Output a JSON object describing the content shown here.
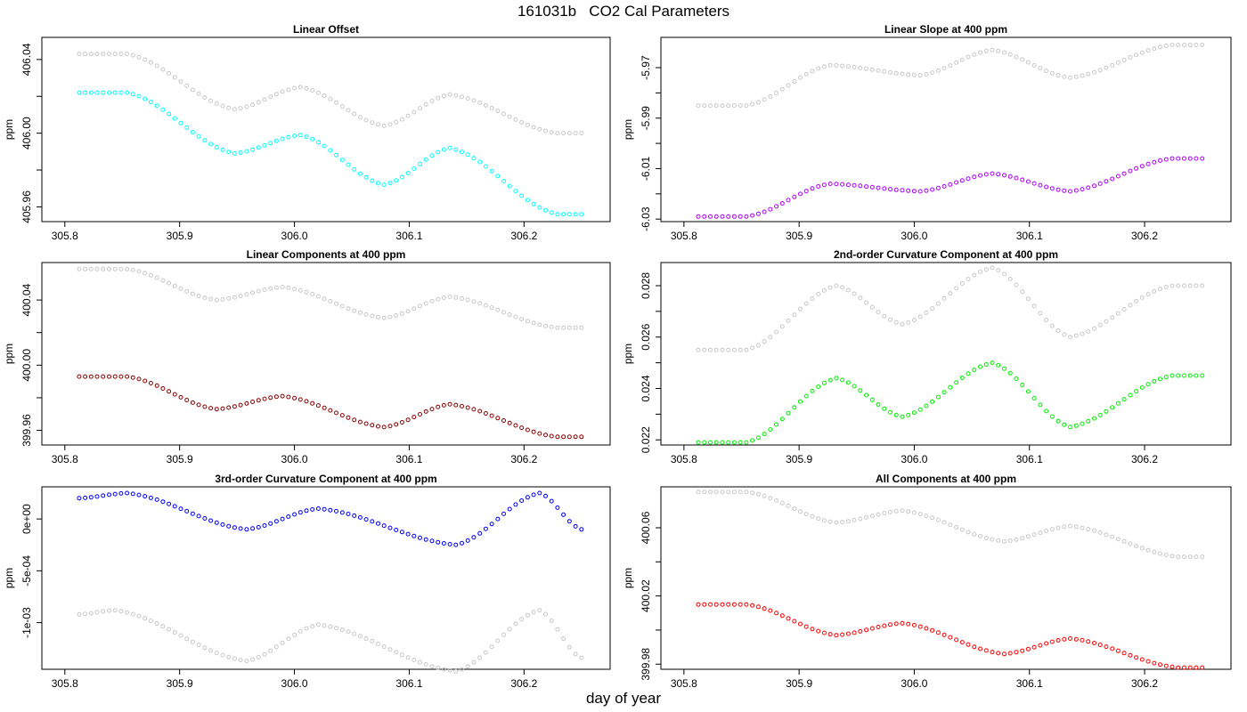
{
  "figure": {
    "title": "161031b   CO2 Cal Parameters",
    "xlabel": "day of year"
  },
  "chart_data": [
    {
      "type": "scatter",
      "title": "Linear Offset",
      "ylabel": "ppm",
      "xlim": [
        305.78,
        306.275
      ],
      "ylim": [
        405.952,
        406.052
      ],
      "xticks": [
        305.8,
        305.9,
        306.0,
        306.1,
        306.2
      ],
      "xtick_labels": [
        "305.8",
        "305.9",
        "306.0",
        "306.1",
        "306.2"
      ],
      "yticks": [
        405.96,
        405.98,
        406.0,
        406.02,
        406.04
      ],
      "ytick_labels": [
        "405.96",
        "",
        "406.00",
        "",
        "406.04"
      ],
      "series": [
        {
          "color": "#c8c8c8",
          "x_start": 305.8125,
          "x_step": 0.0052083,
          "n": 85,
          "knots": [
            [
              0,
              406.043
            ],
            [
              8,
              406.043
            ],
            [
              26,
              406.013
            ],
            [
              37,
              406.025
            ],
            [
              51,
              406.004
            ],
            [
              62,
              406.021
            ],
            [
              80,
              406.0
            ],
            [
              84,
              406.0
            ]
          ]
        },
        {
          "color": "#00ffff",
          "x_start": 305.8125,
          "x_step": 0.0052083,
          "n": 85,
          "knots": [
            [
              0,
              406.022
            ],
            [
              8,
              406.022
            ],
            [
              26,
              405.989
            ],
            [
              37,
              405.999
            ],
            [
              51,
              405.972
            ],
            [
              62,
              405.992
            ],
            [
              80,
              405.956
            ],
            [
              84,
              405.956
            ]
          ]
        }
      ]
    },
    {
      "type": "scatter",
      "title": "Linear Slope at 400 ppm",
      "ylabel": "ppm",
      "xlim": [
        305.78,
        306.275
      ],
      "ylim": [
        -6.031,
        -5.958
      ],
      "xticks": [
        305.8,
        305.9,
        306.0,
        306.1,
        306.2
      ],
      "xtick_labels": [
        "305.8",
        "305.9",
        "306.0",
        "306.1",
        "306.2"
      ],
      "yticks": [
        -6.03,
        -6.02,
        -6.01,
        -6.0,
        -5.99,
        -5.98,
        -5.97
      ],
      "ytick_labels": [
        "-6.03",
        "",
        "-6.01",
        "",
        "-5.99",
        "",
        "-5.97"
      ],
      "series": [
        {
          "color": "#c8c8c8",
          "x_start": 305.8125,
          "x_step": 0.0052083,
          "n": 85,
          "knots": [
            [
              0,
              -5.985
            ],
            [
              8,
              -5.985
            ],
            [
              22,
              -5.969
            ],
            [
              37,
              -5.973
            ],
            [
              49,
              -5.963
            ],
            [
              62,
              -5.974
            ],
            [
              79,
              -5.961
            ],
            [
              84,
              -5.961
            ]
          ]
        },
        {
          "color": "#b000ff",
          "x_start": 305.8125,
          "x_step": 0.0052083,
          "n": 85,
          "knots": [
            [
              0,
              -6.029
            ],
            [
              8,
              -6.029
            ],
            [
              22,
              -6.016
            ],
            [
              37,
              -6.019
            ],
            [
              49,
              -6.012
            ],
            [
              62,
              -6.019
            ],
            [
              79,
              -6.006
            ],
            [
              84,
              -6.006
            ]
          ]
        }
      ]
    },
    {
      "type": "scatter",
      "title": "Linear Components at 400 ppm",
      "ylabel": "ppm",
      "xlim": [
        305.78,
        306.275
      ],
      "ylim": [
        399.951,
        400.063
      ],
      "xticks": [
        305.8,
        305.9,
        306.0,
        306.1,
        306.2
      ],
      "xtick_labels": [
        "305.8",
        "305.9",
        "306.0",
        "306.1",
        "306.2"
      ],
      "yticks": [
        399.96,
        399.98,
        400.0,
        400.02,
        400.04
      ],
      "ytick_labels": [
        "399.96",
        "",
        "400.00",
        "",
        "400.04"
      ],
      "series": [
        {
          "color": "#c8c8c8",
          "x_start": 305.8125,
          "x_step": 0.0052083,
          "n": 85,
          "knots": [
            [
              0,
              400.059
            ],
            [
              8,
              400.059
            ],
            [
              23,
              400.04
            ],
            [
              34,
              400.048
            ],
            [
              51,
              400.029
            ],
            [
              62,
              400.042
            ],
            [
              80,
              400.023
            ],
            [
              84,
              400.023
            ]
          ]
        },
        {
          "color": "#8b0000",
          "x_start": 305.8125,
          "x_step": 0.0052083,
          "n": 85,
          "knots": [
            [
              0,
              399.993
            ],
            [
              8,
              399.993
            ],
            [
              23,
              399.973
            ],
            [
              34,
              399.981
            ],
            [
              51,
              399.962
            ],
            [
              62,
              399.976
            ],
            [
              80,
              399.956
            ],
            [
              84,
              399.956
            ]
          ]
        }
      ]
    },
    {
      "type": "scatter",
      "title": "2nd-order Curvature Component at 400 ppm",
      "ylabel": "ppm",
      "xlim": [
        305.78,
        306.275
      ],
      "ylim": [
        0.0218,
        0.0289
      ],
      "xticks": [
        305.8,
        305.9,
        306.0,
        306.1,
        306.2
      ],
      "xtick_labels": [
        "305.8",
        "305.9",
        "306.0",
        "306.1",
        "306.2"
      ],
      "yticks": [
        0.022,
        0.023,
        0.024,
        0.025,
        0.026,
        0.027,
        0.028
      ],
      "ytick_labels": [
        "0.022",
        "",
        "0.024",
        "",
        "0.026",
        "",
        "0.028"
      ],
      "series": [
        {
          "color": "#c8c8c8",
          "x_start": 305.8125,
          "x_step": 0.0052083,
          "n": 85,
          "knots": [
            [
              0,
              0.0255
            ],
            [
              8,
              0.0255
            ],
            [
              23,
              0.028
            ],
            [
              34,
              0.0265
            ],
            [
              49,
              0.0287
            ],
            [
              62,
              0.026
            ],
            [
              79,
              0.028
            ],
            [
              84,
              0.028
            ]
          ]
        },
        {
          "color": "#00ee00",
          "x_start": 305.8125,
          "x_step": 0.0052083,
          "n": 85,
          "knots": [
            [
              0,
              0.0219
            ],
            [
              8,
              0.0219
            ],
            [
              23,
              0.0244
            ],
            [
              34,
              0.0229
            ],
            [
              49,
              0.025
            ],
            [
              62,
              0.0225
            ],
            [
              79,
              0.0245
            ],
            [
              84,
              0.0245
            ]
          ]
        }
      ]
    },
    {
      "type": "scatter",
      "title": "3rd-order Curvature Component at 400 ppm",
      "ylabel": "ppm",
      "xlim": [
        305.78,
        306.275
      ],
      "ylim": [
        -0.00145,
        0.00031
      ],
      "xticks": [
        305.8,
        305.9,
        306.0,
        306.1,
        306.2
      ],
      "xtick_labels": [
        "305.8",
        "305.9",
        "306.0",
        "306.1",
        "306.2"
      ],
      "yticks": [
        -0.001,
        -0.0005,
        0.0
      ],
      "ytick_labels": [
        "-1e-03",
        "-5e-04",
        "0e+00"
      ],
      "series": [
        {
          "color": "#c8c8c8",
          "x_start": 305.8125,
          "x_step": 0.0052083,
          "n": 85,
          "knots": [
            [
              0,
              -0.00092
            ],
            [
              6,
              -0.00088
            ],
            [
              28,
              -0.00137
            ],
            [
              40,
              -0.00102
            ],
            [
              63,
              -0.00147
            ],
            [
              77,
              -0.00088
            ],
            [
              84,
              -0.00134
            ]
          ]
        },
        {
          "color": "#0000ff",
          "x_start": 305.8125,
          "x_step": 0.0052083,
          "n": 85,
          "knots": [
            [
              0,
              0.0002
            ],
            [
              8,
              0.00025
            ],
            [
              28,
              -0.0001
            ],
            [
              40,
              0.0001
            ],
            [
              63,
              -0.00025
            ],
            [
              77,
              0.00025
            ],
            [
              84,
              -0.0001
            ]
          ]
        }
      ]
    },
    {
      "type": "scatter",
      "title": "All Components at 400 ppm",
      "ylabel": "ppm",
      "xlim": [
        305.78,
        306.275
      ],
      "ylim": [
        399.977,
        400.084
      ],
      "xticks": [
        305.8,
        305.9,
        306.0,
        306.1,
        306.2
      ],
      "xtick_labels": [
        "305.8",
        "305.9",
        "306.0",
        "306.1",
        "306.2"
      ],
      "yticks": [
        399.98,
        400.0,
        400.02,
        400.04,
        400.06
      ],
      "ytick_labels": [
        "399.98",
        "",
        "400.02",
        "",
        "400.06"
      ],
      "series": [
        {
          "color": "#c8c8c8",
          "x_start": 305.8125,
          "x_step": 0.0052083,
          "n": 85,
          "knots": [
            [
              0,
              400.081
            ],
            [
              8,
              400.081
            ],
            [
              23,
              400.063
            ],
            [
              34,
              400.07
            ],
            [
              51,
              400.052
            ],
            [
              62,
              400.061
            ],
            [
              80,
              400.043
            ],
            [
              84,
              400.043
            ]
          ]
        },
        {
          "color": "#ff0000",
          "x_start": 305.8125,
          "x_step": 0.0052083,
          "n": 85,
          "knots": [
            [
              0,
              400.015
            ],
            [
              8,
              400.015
            ],
            [
              23,
              399.997
            ],
            [
              34,
              400.004
            ],
            [
              51,
              399.986
            ],
            [
              62,
              399.995
            ],
            [
              80,
              399.978
            ],
            [
              84,
              399.978
            ]
          ]
        }
      ]
    }
  ]
}
